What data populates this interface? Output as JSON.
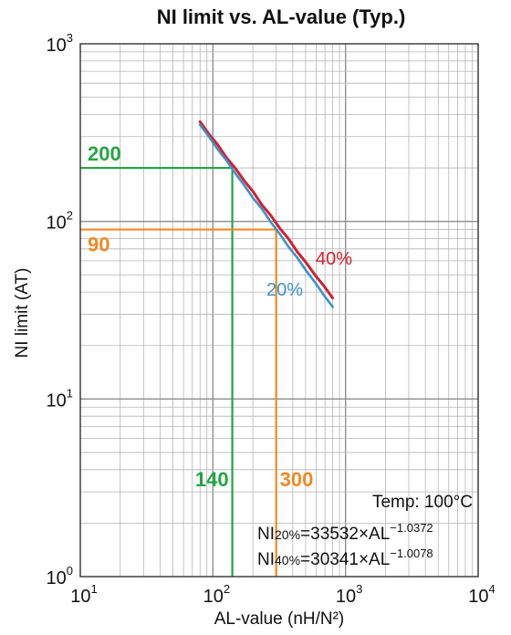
{
  "chart_data": {
    "type": "line",
    "title": "NI limit vs. AL-value (Typ.)",
    "xlabel": "AL-value (nH/N²)",
    "ylabel": "NI limit (AT)",
    "x_scale": "log",
    "y_scale": "log",
    "xlim": [
      10,
      10000
    ],
    "ylim": [
      1,
      1000
    ],
    "grid": true,
    "x_ticks": [
      {
        "base": "10",
        "exp": "1"
      },
      {
        "base": "10",
        "exp": "2"
      },
      {
        "base": "10",
        "exp": "3"
      },
      {
        "base": "10",
        "exp": "4"
      }
    ],
    "y_ticks": [
      {
        "base": "10",
        "exp": "0"
      },
      {
        "base": "10",
        "exp": "1"
      },
      {
        "base": "10",
        "exp": "2"
      },
      {
        "base": "10",
        "exp": "3"
      }
    ],
    "series": [
      {
        "name": "40%",
        "color": "#d4202c",
        "x": [
          80,
          800
        ],
        "y": [
          364,
          37
        ]
      },
      {
        "name": "20%",
        "color": "#3a92cf",
        "x": [
          80,
          800
        ],
        "y": [
          350,
          33
        ]
      }
    ],
    "reference_lines": [
      {
        "color": "#22a544",
        "x": 140,
        "y": 200,
        "x_label": "140",
        "y_label": "200"
      },
      {
        "color": "#f08a24",
        "x": 300,
        "y": 90,
        "x_label": "300",
        "y_label": "90"
      }
    ],
    "annotations": {
      "temp": "Temp: 100°C",
      "formula_20": {
        "prefix": "NI",
        "sub": "20%",
        "mid": "=33532×AL",
        "sup": "−1.0372"
      },
      "formula_40": {
        "prefix": "NI",
        "sub": "40%",
        "mid": "=30341×AL",
        "sup": "−1.0078"
      }
    }
  }
}
